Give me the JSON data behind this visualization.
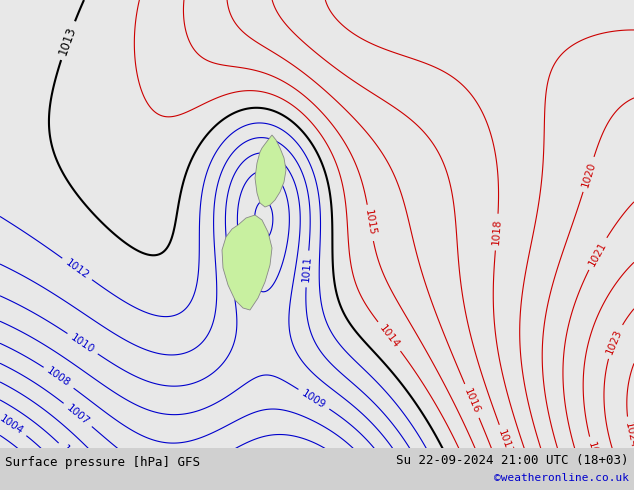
{
  "title_left": "Surface pressure [hPa] GFS",
  "title_right": "Su 22-09-2024 21:00 UTC (18+03)",
  "title_right2": "©weatheronline.co.uk",
  "bg_color": "#e8e8e8",
  "land_color": "#c8f0a0",
  "contour_blue_color": "#0000cc",
  "contour_red_color": "#cc0000",
  "contour_black_color": "#000000",
  "bottom_bar_color": "#d0d0d0",
  "label_fontsize": 7.5,
  "title_fontsize": 9
}
